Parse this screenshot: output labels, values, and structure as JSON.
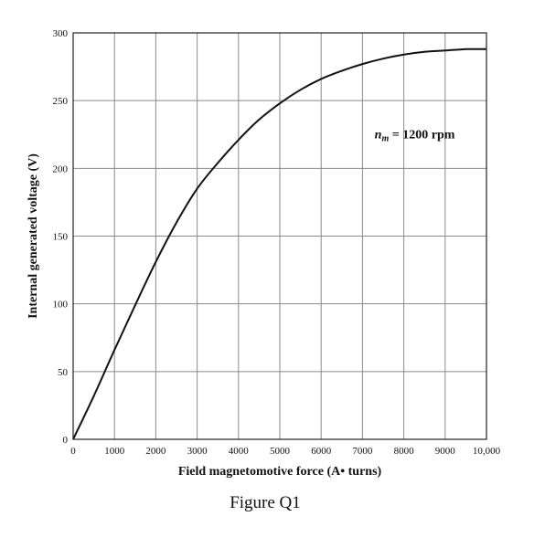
{
  "chart_data": {
    "type": "line",
    "xlabel": "Field magnetomotive force (A• turns)",
    "ylabel": "Internal generated voltage (V)",
    "xlim": [
      0,
      10000
    ],
    "ylim": [
      0,
      300
    ],
    "x_ticks": [
      0,
      1000,
      2000,
      3000,
      4000,
      5000,
      6000,
      7000,
      8000,
      9000,
      10000
    ],
    "x_tick_labels": [
      "0",
      "1000",
      "2000",
      "3000",
      "4000",
      "5000",
      "6000",
      "7000",
      "8000",
      "9000",
      "10,000"
    ],
    "y_ticks": [
      0,
      50,
      100,
      150,
      200,
      250,
      300
    ],
    "y_tick_labels": [
      "0",
      "50",
      "100",
      "150",
      "200",
      "250",
      "300"
    ],
    "grid": true,
    "annotation": {
      "symbol": "n",
      "subscript": "m",
      "text": " = 1200 rpm",
      "x": 8400,
      "y": 222
    },
    "series": [
      {
        "x": [
          0,
          500,
          1000,
          1500,
          2000,
          2500,
          3000,
          3500,
          4000,
          4500,
          5000,
          5500,
          6000,
          6500,
          7000,
          7500,
          8000,
          8500,
          9000,
          9500,
          10000
        ],
        "values": [
          0,
          32,
          66,
          99,
          131,
          160,
          185,
          204,
          221,
          236,
          248,
          258,
          266,
          272,
          277,
          281,
          284,
          286,
          287,
          288,
          288
        ]
      }
    ]
  },
  "caption": "Figure Q1"
}
